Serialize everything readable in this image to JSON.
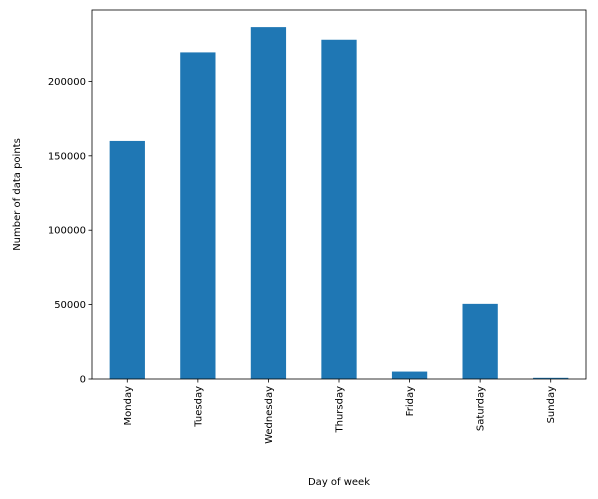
{
  "chart_data": {
    "type": "bar",
    "title": "",
    "xlabel": "Day of week",
    "ylabel": "Number of data points",
    "categories": [
      "Monday",
      "Tuesday",
      "Wednesday",
      "Thursday",
      "Friday",
      "Saturday",
      "Sunday"
    ],
    "values": [
      160000,
      219500,
      236500,
      228000,
      5000,
      50500,
      800
    ],
    "yticks": [
      0,
      50000,
      100000,
      150000,
      200000
    ],
    "ytick_labels": [
      "0",
      "50000",
      "100000",
      "150000",
      "200000"
    ],
    "ylim": [
      0,
      248000
    ],
    "grid": false,
    "legend": "none",
    "colors": {
      "bar": "#1f77b4",
      "axis": "#000000"
    }
  }
}
